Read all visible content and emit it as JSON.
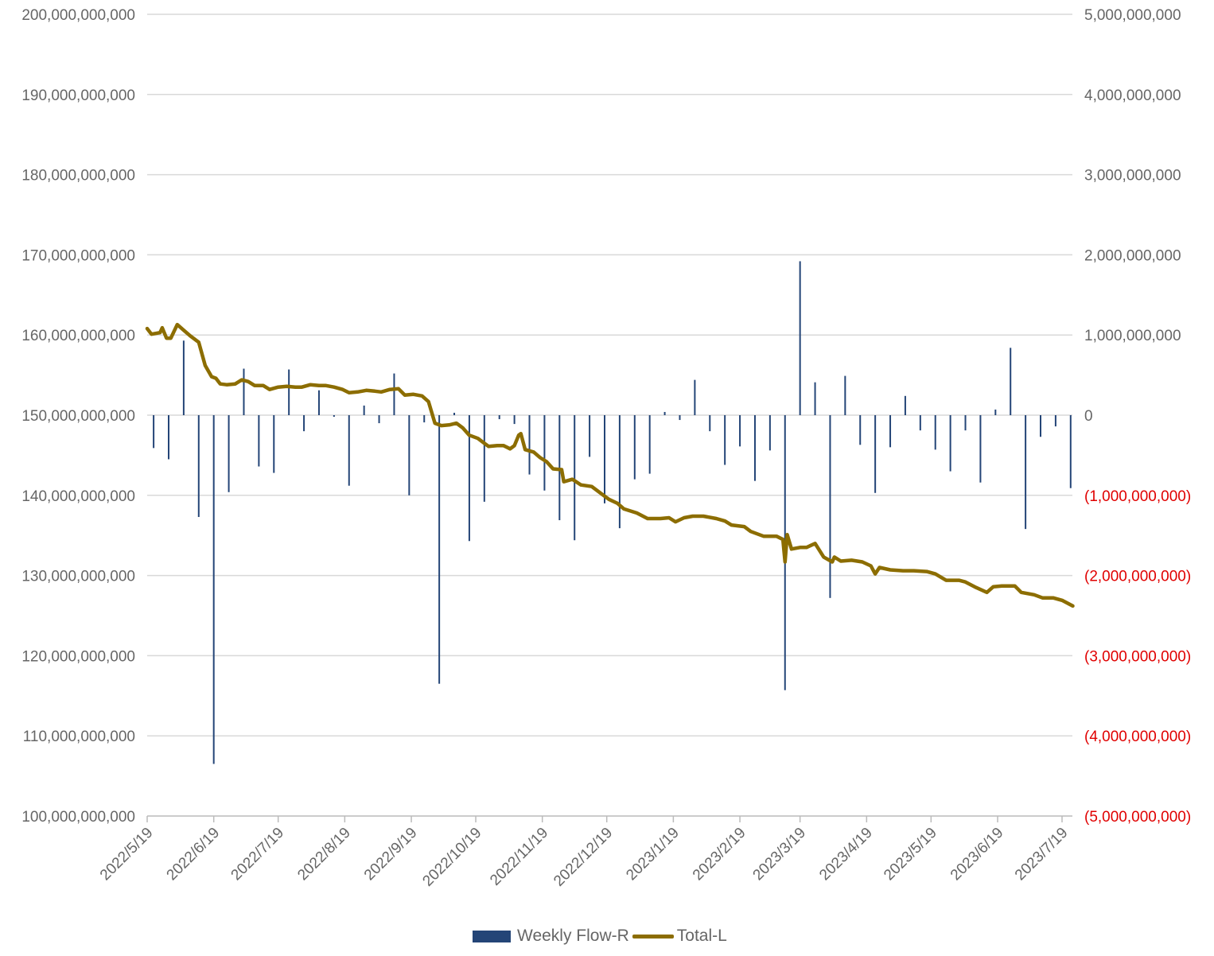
{
  "chart_data": {
    "type": "bar+line",
    "title": "",
    "start_date": "2022-05-19",
    "x_tick_labels": [
      "2022/5/19",
      "2022/6/19",
      "2022/7/19",
      "2022/8/19",
      "2022/9/19",
      "2022/10/19",
      "2022/11/19",
      "2022/12/19",
      "2023/1/19",
      "2023/2/19",
      "2023/3/19",
      "2023/4/19",
      "2023/5/19",
      "2023/6/19",
      "2023/7/19"
    ],
    "x_tick_days": [
      0,
      31,
      61,
      92,
      123,
      153,
      184,
      214,
      245,
      276,
      304,
      335,
      365,
      396,
      426
    ],
    "x_range_days": [
      0,
      431
    ],
    "left_axis": {
      "min": 100000000000,
      "max": 200000000000,
      "step": 10000000000,
      "tick_labels": [
        "100,000,000,000",
        "110,000,000,000",
        "120,000,000,000",
        "130,000,000,000",
        "140,000,000,000",
        "150,000,000,000",
        "160,000,000,000",
        "170,000,000,000",
        "180,000,000,000",
        "190,000,000,000",
        "200,000,000,000"
      ]
    },
    "right_axis": {
      "min": -5000000000,
      "max": 5000000000,
      "step": 1000000000,
      "tick_labels": [
        "(5,000,000,000)",
        "(4,000,000,000)",
        "(3,000,000,000)",
        "(2,000,000,000)",
        "(1,000,000,000)",
        "0",
        "1,000,000,000",
        "2,000,000,000",
        "3,000,000,000",
        "4,000,000,000",
        "5,000,000,000"
      ],
      "negative_color": "#e00000"
    },
    "grid": true,
    "legend_position": "bottom",
    "series": [
      {
        "name": "Weekly Flow-R",
        "type": "bar",
        "axis": "right",
        "color": "#244577",
        "first_day": 3,
        "step_days": 7,
        "unit": "billions",
        "values": [
          -0.41,
          -0.55,
          0.93,
          -1.27,
          -4.35,
          -0.96,
          0.58,
          -0.64,
          -0.72,
          0.57,
          -0.2,
          0.31,
          -0.02,
          -0.88,
          0.12,
          -0.1,
          0.52,
          -1.0,
          -0.09,
          -3.35,
          0.03,
          -1.57,
          -1.08,
          -0.05,
          -0.11,
          -0.74,
          -0.94,
          -1.31,
          -1.56,
          -0.52,
          -1.1,
          -1.41,
          -0.8,
          -0.73,
          0.04,
          -0.06,
          0.44,
          -0.2,
          -0.62,
          -0.39,
          -0.82,
          -0.44,
          -3.43,
          1.92,
          0.41,
          -2.28,
          0.49,
          -0.37,
          -0.97,
          -0.4,
          0.24,
          -0.19,
          -0.43,
          -0.7,
          -0.19,
          -0.84,
          0.07,
          0.84,
          -1.42,
          -0.27,
          -0.14,
          -0.91
        ]
      },
      {
        "name": "Total-L",
        "type": "line",
        "axis": "left",
        "color": "#8c6d00",
        "unit": "billions",
        "points": [
          [
            0,
            160.8
          ],
          [
            2,
            160.1
          ],
          [
            6,
            160.3
          ],
          [
            7,
            160.9
          ],
          [
            9,
            159.6
          ],
          [
            11,
            159.6
          ],
          [
            14,
            161.3
          ],
          [
            17,
            160.6
          ],
          [
            20,
            159.9
          ],
          [
            24,
            159.1
          ],
          [
            27,
            156.2
          ],
          [
            30,
            154.8
          ],
          [
            32,
            154.6
          ],
          [
            34,
            153.9
          ],
          [
            37,
            153.8
          ],
          [
            41,
            153.9
          ],
          [
            44,
            154.4
          ],
          [
            47,
            154.2
          ],
          [
            50,
            153.7
          ],
          [
            54,
            153.7
          ],
          [
            57,
            153.2
          ],
          [
            61,
            153.5
          ],
          [
            65,
            153.6
          ],
          [
            69,
            153.5
          ],
          [
            72,
            153.5
          ],
          [
            76,
            153.8
          ],
          [
            80,
            153.7
          ],
          [
            83,
            153.7
          ],
          [
            87,
            153.5
          ],
          [
            91,
            153.2
          ],
          [
            94,
            152.8
          ],
          [
            98,
            152.9
          ],
          [
            102,
            153.1
          ],
          [
            106,
            153.0
          ],
          [
            109,
            152.9
          ],
          [
            113,
            153.2
          ],
          [
            117,
            153.3
          ],
          [
            120,
            152.5
          ],
          [
            124,
            152.6
          ],
          [
            128,
            152.4
          ],
          [
            131,
            151.7
          ],
          [
            134,
            149.0
          ],
          [
            137,
            148.7
          ],
          [
            141,
            148.8
          ],
          [
            144,
            149.0
          ],
          [
            147,
            148.4
          ],
          [
            150,
            147.5
          ],
          [
            154,
            147.1
          ],
          [
            157,
            146.5
          ],
          [
            159,
            146.1
          ],
          [
            163,
            146.2
          ],
          [
            166,
            146.2
          ],
          [
            169,
            145.8
          ],
          [
            171,
            146.2
          ],
          [
            173,
            147.5
          ],
          [
            174,
            147.7
          ],
          [
            176,
            145.7
          ],
          [
            180,
            145.4
          ],
          [
            183,
            144.7
          ],
          [
            186,
            144.2
          ],
          [
            189,
            143.3
          ],
          [
            193,
            143.2
          ],
          [
            194,
            141.7
          ],
          [
            198,
            142.0
          ],
          [
            202,
            141.3
          ],
          [
            207,
            141.1
          ],
          [
            211,
            140.3
          ],
          [
            215,
            139.5
          ],
          [
            219,
            139.0
          ],
          [
            222,
            138.3
          ],
          [
            228,
            137.8
          ],
          [
            233,
            137.1
          ],
          [
            239,
            137.1
          ],
          [
            243,
            137.2
          ],
          [
            246,
            136.7
          ],
          [
            250,
            137.2
          ],
          [
            254,
            137.4
          ],
          [
            259,
            137.4
          ],
          [
            265,
            137.1
          ],
          [
            269,
            136.8
          ],
          [
            272,
            136.3
          ],
          [
            278,
            136.1
          ],
          [
            281,
            135.5
          ],
          [
            287,
            134.9
          ],
          [
            293,
            134.9
          ],
          [
            296,
            134.5
          ],
          [
            297,
            131.7
          ],
          [
            298,
            135.1
          ],
          [
            300,
            133.3
          ],
          [
            304,
            133.5
          ],
          [
            307,
            133.5
          ],
          [
            311,
            134.0
          ],
          [
            315,
            132.3
          ],
          [
            319,
            131.7
          ],
          [
            320,
            132.3
          ],
          [
            323,
            131.8
          ],
          [
            328,
            131.9
          ],
          [
            333,
            131.7
          ],
          [
            337,
            131.2
          ],
          [
            339,
            130.2
          ],
          [
            341,
            131.0
          ],
          [
            346,
            130.7
          ],
          [
            352,
            130.6
          ],
          [
            357,
            130.6
          ],
          [
            363,
            130.5
          ],
          [
            367,
            130.2
          ],
          [
            372,
            129.4
          ],
          [
            378,
            129.4
          ],
          [
            381,
            129.2
          ],
          [
            386,
            128.5
          ],
          [
            391,
            127.9
          ],
          [
            394,
            128.6
          ],
          [
            398,
            128.7
          ],
          [
            404,
            128.7
          ],
          [
            407,
            127.9
          ],
          [
            413,
            127.6
          ],
          [
            417,
            127.2
          ],
          [
            422,
            127.2
          ],
          [
            426,
            126.9
          ],
          [
            431,
            126.2
          ]
        ]
      }
    ]
  },
  "legend": {
    "bar_label": "Weekly Flow-R",
    "line_label": "Total-L"
  }
}
